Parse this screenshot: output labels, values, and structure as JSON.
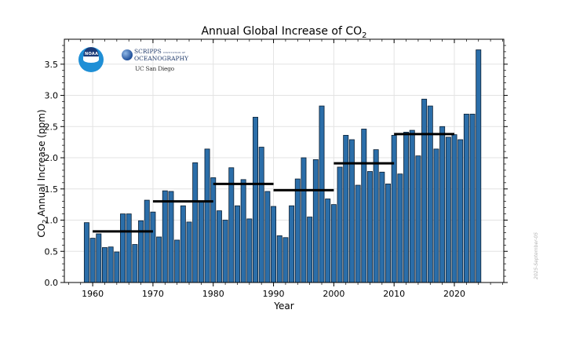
{
  "chart_data": {
    "type": "bar",
    "title": "Annual Global Increase of CO",
    "title_subscript": "2",
    "xlabel": "Year",
    "ylabel_prefix": "CO",
    "ylabel_subscript": "2",
    "ylabel_suffix": " Annual Increase (ppm)",
    "xlim": [
      1955.3,
      2028.2
    ],
    "ylim": [
      0,
      3.9
    ],
    "x_ticks": [
      1960,
      1970,
      1980,
      1990,
      2000,
      2010,
      2020
    ],
    "y_ticks": [
      0.0,
      0.5,
      1.0,
      1.5,
      2.0,
      2.5,
      3.0,
      3.5
    ],
    "y_tick_labels": [
      "0.0",
      "0.5",
      "1.0",
      "1.5",
      "2.0",
      "2.5",
      "3.0",
      "3.5"
    ],
    "grid": true,
    "bar_color": "#2b6ea9",
    "bar_edge_color": "#0b1f33",
    "mean_line_color": "#000000",
    "x": [
      1959,
      1960,
      1961,
      1962,
      1963,
      1964,
      1965,
      1966,
      1967,
      1968,
      1969,
      1970,
      1971,
      1972,
      1973,
      1974,
      1975,
      1976,
      1977,
      1978,
      1979,
      1980,
      1981,
      1982,
      1983,
      1984,
      1985,
      1986,
      1987,
      1988,
      1989,
      1990,
      1991,
      1992,
      1993,
      1994,
      1995,
      1996,
      1997,
      1998,
      1999,
      2000,
      2001,
      2002,
      2003,
      2004,
      2005,
      2006,
      2007,
      2008,
      2009,
      2010,
      2011,
      2012,
      2013,
      2014,
      2015,
      2016,
      2017,
      2018,
      2019,
      2020,
      2021,
      2022,
      2023,
      2024
    ],
    "values": [
      0.96,
      0.71,
      0.78,
      0.56,
      0.57,
      0.49,
      1.1,
      1.1,
      0.61,
      0.99,
      1.32,
      1.13,
      0.73,
      1.47,
      1.46,
      0.68,
      1.23,
      0.97,
      1.92,
      1.29,
      2.14,
      1.68,
      1.15,
      1.0,
      1.84,
      1.23,
      1.65,
      1.02,
      2.65,
      2.17,
      1.46,
      1.22,
      0.75,
      0.72,
      1.23,
      1.66,
      2.0,
      1.05,
      1.97,
      2.83,
      1.34,
      1.25,
      1.85,
      2.36,
      2.29,
      1.56,
      2.46,
      1.78,
      2.13,
      1.77,
      1.58,
      2.36,
      1.74,
      2.41,
      2.44,
      2.03,
      2.94,
      2.83,
      2.14,
      2.5,
      2.33,
      2.37,
      2.29,
      2.7,
      2.7,
      3.73
    ],
    "decade_means": [
      {
        "label": "1960s",
        "start": 1960,
        "end": 1970,
        "value": 0.82
      },
      {
        "label": "1970s",
        "start": 1970,
        "end": 1980,
        "value": 1.3
      },
      {
        "label": "1980s",
        "start": 1980,
        "end": 1990,
        "value": 1.58
      },
      {
        "label": "1990s",
        "start": 1990,
        "end": 2000,
        "value": 1.48
      },
      {
        "label": "2000s",
        "start": 2000,
        "end": 2010,
        "value": 1.91
      },
      {
        "label": "2010s",
        "start": 2010,
        "end": 2020,
        "value": 2.38
      }
    ],
    "annotation": "2025-September-05"
  },
  "logos": {
    "noaa": "NOAA",
    "scripps_name_1": "SCRIPPS",
    "scripps_sub": "INSTITUTION OF",
    "scripps_name_2": "OCEANOGRAPHY",
    "ucsd": "UC San Diego"
  }
}
